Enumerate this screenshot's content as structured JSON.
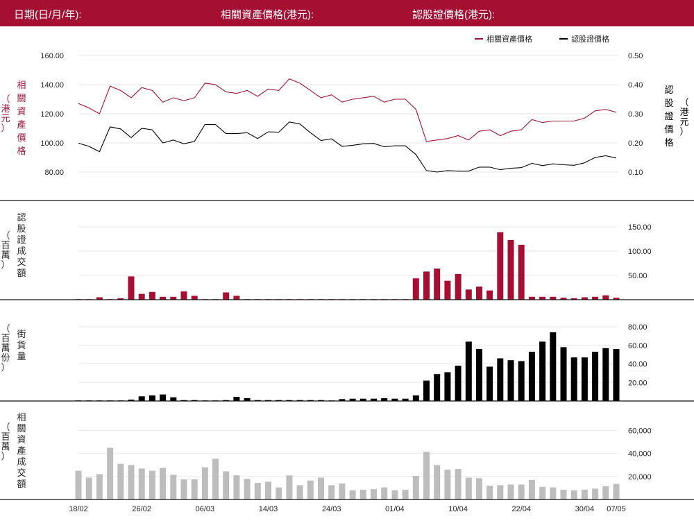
{
  "header": {
    "date_label": "日期(日/月/年):",
    "underlying_label": "相關資產價格(港元):",
    "warrant_label": "認股證價格(港元):"
  },
  "colors": {
    "header_bg": "#a50f32",
    "underlying": "#a50f32",
    "warrant": "#000000",
    "turnover_bar": "#bdbdbd"
  },
  "chart_data": [
    {
      "type": "line",
      "legend": [
        "相關資產價格",
        "認股證價格"
      ],
      "legend_position": "top-right",
      "y_left_label": [
        "相",
        "關",
        "資",
        "產",
        "價",
        "格"
      ],
      "y_left_unit": [
        "（",
        "港",
        "元",
        "）"
      ],
      "y_right_label": [
        "認",
        "股",
        "證",
        "價",
        "格"
      ],
      "y_right_unit": [
        "（",
        "港",
        "元",
        "）"
      ],
      "y_left_ticks": [
        "160.00",
        "140.00",
        "120.00",
        "100.00",
        "80.00"
      ],
      "y_left_range": [
        72,
        160
      ],
      "y_right_ticks": [
        "0.50",
        "0.40",
        "0.30",
        "0.20",
        "0.10"
      ],
      "y_right_range": [
        0.05,
        0.5
      ],
      "series": [
        {
          "name": "相關資產價格",
          "axis": "left",
          "values": [
            127,
            124,
            120,
            139,
            136,
            131,
            138,
            136,
            128,
            131,
            129,
            131,
            141,
            140,
            135,
            134,
            136,
            132,
            137,
            136,
            144,
            141,
            136,
            131,
            133,
            128,
            130,
            131,
            132,
            128,
            130,
            130,
            123,
            101,
            102,
            103,
            105,
            102,
            108,
            109,
            105,
            108,
            109,
            116,
            114,
            115,
            115,
            115,
            117,
            122,
            123,
            121
          ]
        },
        {
          "name": "認股證價格",
          "axis": "right",
          "values": [
            0.199,
            0.188,
            0.17,
            0.255,
            0.248,
            0.218,
            0.25,
            0.245,
            0.2,
            0.21,
            0.197,
            0.205,
            0.263,
            0.263,
            0.232,
            0.232,
            0.235,
            0.215,
            0.238,
            0.237,
            0.272,
            0.265,
            0.235,
            0.208,
            0.214,
            0.188,
            0.192,
            0.197,
            0.198,
            0.187,
            0.19,
            0.19,
            0.16,
            0.105,
            0.1,
            0.105,
            0.103,
            0.103,
            0.117,
            0.117,
            0.108,
            0.113,
            0.115,
            0.13,
            0.122,
            0.128,
            0.125,
            0.123,
            0.132,
            0.15,
            0.156,
            0.148
          ]
        }
      ]
    },
    {
      "type": "bar",
      "y_label": [
        "認",
        "股",
        "證",
        "成",
        "交",
        "額"
      ],
      "y_unit": [
        "（",
        "百",
        "萬",
        "）"
      ],
      "y_ticks": [
        "150.00",
        "100.00",
        "50.00"
      ],
      "y_range": [
        0,
        160
      ],
      "values": [
        1,
        1,
        5,
        1,
        3,
        48,
        12,
        16,
        6,
        6,
        17,
        8,
        1,
        1,
        15,
        8,
        1,
        1,
        1,
        1,
        1,
        1,
        1,
        1,
        1,
        1,
        1,
        1,
        1,
        1,
        1,
        1,
        44,
        58,
        64,
        39,
        53,
        21,
        27,
        19,
        139,
        123,
        113,
        6,
        6,
        6,
        4,
        3,
        5,
        6,
        9,
        4
      ]
    },
    {
      "type": "bar",
      "y_label": [
        "街",
        "貨",
        "量"
      ],
      "y_unit": [
        "（",
        "百",
        "萬",
        "份",
        "）"
      ],
      "y_ticks": [
        "80.00",
        "60.00",
        "40.00",
        "20.00"
      ],
      "y_range": [
        0,
        86
      ],
      "values": [
        0.5,
        0.5,
        0.5,
        0.5,
        0.5,
        1.5,
        5,
        6,
        7,
        4,
        1,
        1,
        0.5,
        0.5,
        1,
        4.5,
        3,
        1,
        1,
        1,
        1,
        1,
        1,
        1,
        0.5,
        2,
        2.5,
        2.5,
        2.5,
        3,
        2.5,
        2.5,
        6,
        22,
        29,
        31,
        38,
        64,
        56,
        37,
        46,
        44,
        43,
        53,
        64,
        74,
        58,
        47,
        47,
        53,
        57,
        56
      ]
    },
    {
      "type": "bar",
      "y_label": [
        "相",
        "關",
        "資",
        "產",
        "成",
        "交",
        "額"
      ],
      "y_unit": [
        "（",
        "百",
        "萬",
        "）"
      ],
      "y_ticks": [
        "60,000",
        "40,000",
        "20,000"
      ],
      "y_range": [
        0,
        70000
      ],
      "x_ticks": [
        "18/02",
        "26/02",
        "06/03",
        "14/03",
        "24/03",
        "01/04",
        "10/04",
        "22/04",
        "30/04",
        "07/05"
      ],
      "values": [
        25000,
        19000,
        22000,
        45000,
        31000,
        30000,
        27000,
        25000,
        27500,
        21500,
        17500,
        17500,
        28000,
        35500,
        24500,
        21000,
        18000,
        14500,
        15500,
        10500,
        21000,
        12500,
        16500,
        19000,
        12500,
        14000,
        8000,
        8500,
        9000,
        10500,
        8000,
        8500,
        20500,
        41500,
        30000,
        26000,
        26500,
        19000,
        18500,
        12000,
        12500,
        13000,
        13000,
        17000,
        11000,
        10500,
        8500,
        8000,
        8500,
        9500,
        11500,
        13500
      ]
    }
  ]
}
